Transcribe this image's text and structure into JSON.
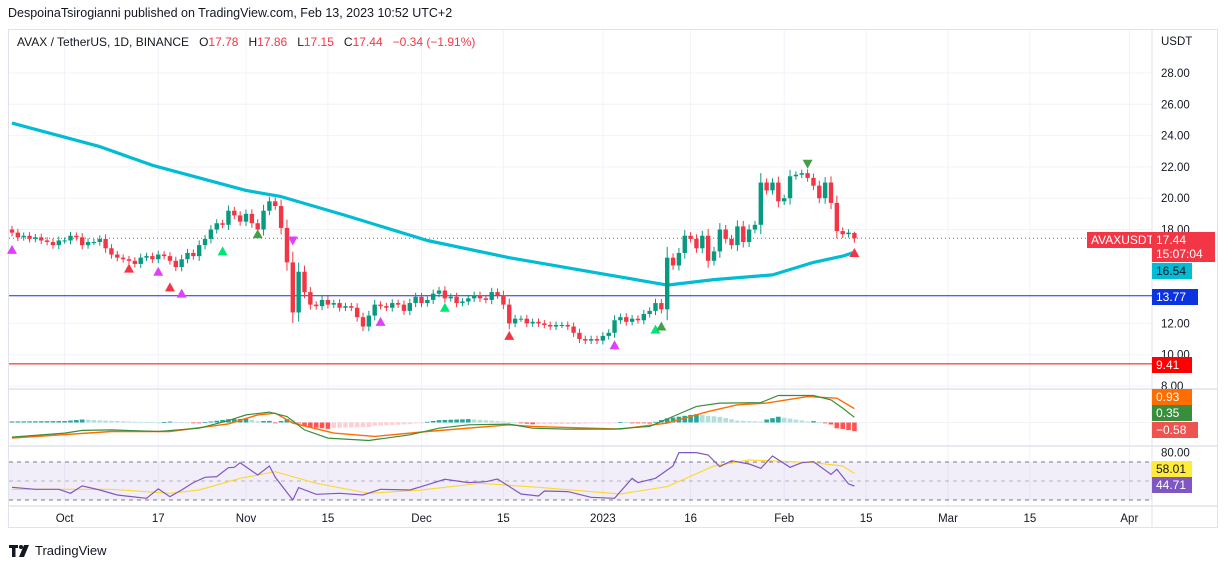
{
  "publisher_line": "DespoinaTsirogianni published on TradingView.com, Feb 13, 2023 10:52 UTC+2",
  "legend": {
    "symbol": "AVAX / TetherUS, 1D, BINANCE",
    "open_label": "O",
    "open": "17.78",
    "high_label": "H",
    "high": "17.86",
    "low_label": "L",
    "low": "17.15",
    "close_label": "C",
    "close": "17.44",
    "change": "−0.34 (−1.91%)"
  },
  "axis": {
    "currency": "USDT",
    "price_ticks": [
      "28.00",
      "26.00",
      "24.00",
      "22.00",
      "20.00",
      "18.00",
      "12.00",
      "10.00",
      "8.00"
    ],
    "rsi_ticks": [
      "80.00"
    ],
    "time_ticks": [
      {
        "label": "Oct",
        "date": "2022-10-01"
      },
      {
        "label": "17",
        "date": "2022-10-17"
      },
      {
        "label": "Nov",
        "date": "2022-11-01"
      },
      {
        "label": "15",
        "date": "2022-11-15"
      },
      {
        "label": "Dec",
        "date": "2022-12-01"
      },
      {
        "label": "15",
        "date": "2022-12-15"
      },
      {
        "label": "2023",
        "date": "2023-01-01"
      },
      {
        "label": "16",
        "date": "2023-01-16"
      },
      {
        "label": "Feb",
        "date": "2023-02-01"
      },
      {
        "label": "15",
        "date": "2023-02-15"
      },
      {
        "label": "Mar",
        "date": "2023-03-01"
      },
      {
        "label": "15",
        "date": "2023-03-15"
      },
      {
        "label": "Apr",
        "date": "2023-04-01"
      }
    ]
  },
  "price_tags": {
    "symbol": "AVAXUSDT",
    "last": "17.44",
    "countdown": "15:07:04",
    "ma": "16.54",
    "support_level": "13.77",
    "lower_level": "9.41",
    "macd_signal": "0.93",
    "macd": "0.35",
    "macd_hist": "−0.58",
    "rsi_ma": "58.01",
    "rsi": "44.71"
  },
  "colors": {
    "up": "#089981",
    "down": "#f23645",
    "ma": "#00bcd4",
    "support_line": "#0c33e0",
    "lower_line": "#ff0000",
    "macd": "#388e3c",
    "signal": "#ff6d00",
    "rsi": "#7e57c2",
    "rsi_ma": "#fdd835"
  },
  "chart_data": {
    "type": "candlestick",
    "symbol": "AVAXUSDT",
    "ylim": [
      7.5,
      29.5
    ],
    "horizontal_levels": [
      13.77,
      9.41
    ],
    "closes": [
      17.8,
      17.5,
      17.6,
      17.4,
      17.5,
      17.3,
      17.2,
      17.0,
      17.3,
      17.3,
      17.6,
      17.5,
      17.0,
      17.2,
      17.2,
      17.4,
      16.8,
      16.4,
      16.2,
      16.1,
      16.0,
      15.8,
      16.2,
      16.3,
      16.1,
      16.4,
      16.3,
      16.0,
      15.6,
      16.1,
      16.5,
      16.3,
      17.0,
      17.4,
      18.0,
      18.4,
      18.3,
      19.2,
      18.9,
      18.5,
      19.0,
      18.4,
      18.0,
      19.2,
      19.8,
      19.5,
      18.1,
      15.9,
      12.7,
      15.3,
      14.0,
      13.2,
      13.1,
      13.5,
      13.2,
      13.3,
      13.0,
      13.1,
      13.0,
      12.4,
      11.8,
      12.5,
      13.2,
      13.1,
      13.0,
      13.3,
      13.2,
      12.8,
      13.3,
      13.7,
      13.3,
      13.5,
      13.9,
      14.1,
      13.6,
      13.7,
      13.3,
      13.4,
      13.6,
      13.8,
      13.6,
      13.5,
      14.0,
      13.8,
      13.2,
      12.0,
      12.3,
      12.3,
      12.0,
      12.1,
      12.0,
      11.9,
      11.8,
      11.9,
      11.9,
      11.8,
      11.4,
      11.0,
      10.9,
      11.0,
      10.9,
      11.2,
      11.4,
      12.2,
      12.4,
      12.1,
      12.3,
      12.2,
      12.6,
      12.8,
      13.3,
      12.9,
      16.2,
      15.7,
      16.5,
      17.6,
      17.4,
      16.8,
      17.6,
      16.0,
      16.6,
      18.0,
      17.4,
      17.0,
      18.2,
      17.2,
      18.0,
      18.3,
      21.0,
      20.5,
      21.0,
      19.8,
      20.0,
      21.4,
      21.5,
      21.6,
      21.3,
      20.8,
      20.0,
      21.0,
      19.7,
      17.9,
      17.7,
      17.8,
      17.44
    ],
    "moving_average": [
      [
        "2022-09-22",
        24.8
      ],
      [
        "2022-10-07",
        23.3
      ],
      [
        "2022-10-16",
        22.1
      ],
      [
        "2022-11-01",
        20.5
      ],
      [
        "2022-11-07",
        20.1
      ],
      [
        "2022-11-18",
        18.9
      ],
      [
        "2022-12-02",
        17.3
      ],
      [
        "2022-12-16",
        16.2
      ],
      [
        "2023-01-02",
        15.1
      ],
      [
        "2023-01-12",
        14.45
      ],
      [
        "2023-01-20",
        14.8
      ],
      [
        "2023-01-30",
        15.1
      ],
      [
        "2023-02-06",
        15.9
      ],
      [
        "2023-02-11",
        16.3
      ],
      [
        "2023-02-13",
        16.54
      ]
    ],
    "macd": [
      [
        "2022-09-22",
        -0.97
      ],
      [
        "2022-10-01",
        -0.71
      ],
      [
        "2022-10-04",
        -0.53
      ],
      [
        "2022-10-09",
        -0.49
      ],
      [
        "2022-10-17",
        -0.6
      ],
      [
        "2022-10-24",
        -0.38
      ],
      [
        "2022-10-29",
        0.13
      ],
      [
        "2022-11-01",
        0.51
      ],
      [
        "2022-11-05",
        0.69
      ],
      [
        "2022-11-08",
        0.4
      ],
      [
        "2022-11-11",
        -0.49
      ],
      [
        "2022-11-15",
        -1.04
      ],
      [
        "2022-11-22",
        -1.2
      ],
      [
        "2022-11-29",
        -0.82
      ],
      [
        "2022-12-04",
        -0.38
      ],
      [
        "2022-12-09",
        -0.15
      ],
      [
        "2022-12-16",
        -0.11
      ],
      [
        "2022-12-20",
        -0.38
      ],
      [
        "2022-12-26",
        -0.44
      ],
      [
        "2023-01-03",
        -0.44
      ],
      [
        "2023-01-09",
        -0.26
      ],
      [
        "2023-01-13",
        0.4
      ],
      [
        "2023-01-17",
        1.07
      ],
      [
        "2023-01-21",
        1.29
      ],
      [
        "2023-01-28",
        1.33
      ],
      [
        "2023-01-31",
        1.8
      ],
      [
        "2023-02-06",
        1.8
      ],
      [
        "2023-02-09",
        1.51
      ],
      [
        "2023-02-11",
        0.96
      ],
      [
        "2023-02-13",
        0.35
      ]
    ],
    "macd_signal": [
      [
        "2022-09-22",
        -1.04
      ],
      [
        "2022-10-09",
        -0.6
      ],
      [
        "2022-10-19",
        -0.6
      ],
      [
        "2022-10-29",
        -0.09
      ],
      [
        "2022-11-03",
        0.51
      ],
      [
        "2022-11-06",
        0.62
      ],
      [
        "2022-11-09",
        -0.04
      ],
      [
        "2022-11-16",
        -0.71
      ],
      [
        "2022-11-23",
        -0.93
      ],
      [
        "2022-12-02",
        -0.6
      ],
      [
        "2022-12-16",
        -0.15
      ],
      [
        "2022-12-20",
        -0.26
      ],
      [
        "2023-01-04",
        -0.44
      ],
      [
        "2023-01-12",
        -0.04
      ],
      [
        "2023-01-19",
        0.73
      ],
      [
        "2023-01-24",
        1.18
      ],
      [
        "2023-01-29",
        1.29
      ],
      [
        "2023-02-05",
        1.73
      ],
      [
        "2023-02-10",
        1.62
      ],
      [
        "2023-02-13",
        0.93
      ]
    ],
    "rsi_band": [
      30,
      70
    ],
    "rsi": [
      [
        "2022-09-22",
        43.4
      ],
      [
        "2022-09-26",
        41.3
      ],
      [
        "2022-09-30",
        41.3
      ],
      [
        "2022-10-02",
        37.1
      ],
      [
        "2022-10-04",
        44.8
      ],
      [
        "2022-10-07",
        40.5
      ],
      [
        "2022-10-10",
        35.3
      ],
      [
        "2022-10-15",
        31.8
      ],
      [
        "2022-10-17",
        41.7
      ],
      [
        "2022-10-19",
        33.5
      ],
      [
        "2022-10-21",
        40.5
      ],
      [
        "2022-10-23",
        48.3
      ],
      [
        "2022-10-25",
        53.9
      ],
      [
        "2022-10-27",
        54.6
      ],
      [
        "2022-10-29",
        64.0
      ],
      [
        "2022-10-30",
        64.4
      ],
      [
        "2022-10-31",
        69.3
      ],
      [
        "2022-11-03",
        56.3
      ],
      [
        "2022-11-05",
        65.8
      ],
      [
        "2022-11-06",
        53.9
      ],
      [
        "2022-11-09",
        30.0
      ],
      [
        "2022-11-10",
        43.0
      ],
      [
        "2022-11-13",
        36.0
      ],
      [
        "2022-11-17",
        37.1
      ],
      [
        "2022-11-21",
        35.3
      ],
      [
        "2022-11-24",
        41.3
      ],
      [
        "2022-11-29",
        40.5
      ],
      [
        "2022-12-01",
        44.1
      ],
      [
        "2022-12-05",
        51.8
      ],
      [
        "2022-12-09",
        48.3
      ],
      [
        "2022-12-12",
        49.3
      ],
      [
        "2022-12-14",
        52.1
      ],
      [
        "2022-12-18",
        36.3
      ],
      [
        "2022-12-21",
        34.2
      ],
      [
        "2022-12-22",
        39.5
      ],
      [
        "2022-12-26",
        38.8
      ],
      [
        "2022-12-30",
        32.8
      ],
      [
        "2023-01-03",
        31.8
      ],
      [
        "2023-01-06",
        52.8
      ],
      [
        "2023-01-07",
        48.3
      ],
      [
        "2023-01-10",
        52.8
      ],
      [
        "2023-01-13",
        65.8
      ],
      [
        "2023-01-14",
        79.9
      ],
      [
        "2023-01-17",
        79.9
      ],
      [
        "2023-01-19",
        77.4
      ],
      [
        "2023-01-21",
        65.1
      ],
      [
        "2023-01-23",
        71.4
      ],
      [
        "2023-01-26",
        67.9
      ],
      [
        "2023-01-28",
        63.4
      ],
      [
        "2023-01-30",
        76.3
      ],
      [
        "2023-02-02",
        64.4
      ],
      [
        "2023-02-04",
        69.3
      ],
      [
        "2023-02-06",
        70.4
      ],
      [
        "2023-02-09",
        56.9
      ],
      [
        "2023-02-10",
        62.3
      ],
      [
        "2023-02-12",
        46.9
      ],
      [
        "2023-02-13",
        44.71
      ]
    ],
    "rsi_ma": [
      [
        "2022-09-22",
        41.3
      ],
      [
        "2022-10-09",
        41.3
      ],
      [
        "2022-10-19",
        37.1
      ],
      [
        "2022-10-24",
        40.5
      ],
      [
        "2022-10-31",
        52.8
      ],
      [
        "2022-11-06",
        59.8
      ],
      [
        "2022-11-13",
        47.6
      ],
      [
        "2022-11-22",
        37.1
      ],
      [
        "2022-12-01",
        40.5
      ],
      [
        "2022-12-11",
        47.6
      ],
      [
        "2022-12-21",
        43.4
      ],
      [
        "2023-01-04",
        36.3
      ],
      [
        "2023-01-12",
        44.1
      ],
      [
        "2023-01-20",
        65.8
      ],
      [
        "2023-01-26",
        72.1
      ],
      [
        "2023-02-02",
        70.4
      ],
      [
        "2023-02-06",
        69.3
      ],
      [
        "2023-02-11",
        65.8
      ],
      [
        "2023-02-13",
        58.01
      ]
    ],
    "signals": [
      {
        "date": "2022-09-22",
        "price": 16.7,
        "dir": "up",
        "color": "#e040fb"
      },
      {
        "date": "2022-10-12",
        "price": 15.5,
        "dir": "up",
        "color": "#f23645"
      },
      {
        "date": "2022-10-17",
        "price": 15.3,
        "dir": "up",
        "color": "#e040fb"
      },
      {
        "date": "2022-10-19",
        "price": 14.3,
        "dir": "up",
        "color": "#f23645"
      },
      {
        "date": "2022-10-21",
        "price": 13.9,
        "dir": "up",
        "color": "#e040fb"
      },
      {
        "date": "2022-10-28",
        "price": 16.6,
        "dir": "up",
        "color": "#00e676"
      },
      {
        "date": "2022-11-03",
        "price": 17.7,
        "dir": "up",
        "color": "#43a047"
      },
      {
        "date": "2022-11-09",
        "price": 17.3,
        "dir": "down",
        "color": "#e040fb"
      },
      {
        "date": "2022-11-24",
        "price": 12.1,
        "dir": "up",
        "color": "#e040fb"
      },
      {
        "date": "2022-12-05",
        "price": 13.0,
        "dir": "up",
        "color": "#00e676"
      },
      {
        "date": "2022-12-16",
        "price": 11.2,
        "dir": "up",
        "color": "#f23645"
      },
      {
        "date": "2023-01-03",
        "price": 10.6,
        "dir": "up",
        "color": "#e040fb"
      },
      {
        "date": "2023-01-10",
        "price": 11.6,
        "dir": "up",
        "color": "#00e676"
      },
      {
        "date": "2023-01-11",
        "price": 11.8,
        "dir": "up",
        "color": "#43a047"
      },
      {
        "date": "2023-02-05",
        "price": 22.2,
        "dir": "down",
        "color": "#43a047"
      },
      {
        "date": "2023-02-13",
        "price": 16.5,
        "dir": "up",
        "color": "#f23645"
      }
    ]
  },
  "footer": {
    "brand": "TradingView"
  }
}
